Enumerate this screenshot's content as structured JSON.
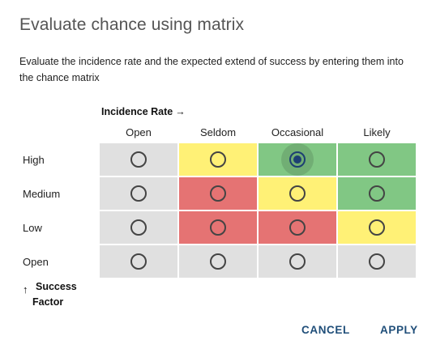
{
  "dialog": {
    "title": "Evaluate chance using matrix",
    "description": "Evaluate the incidence rate and the expected extend of success by entering them into the chance matrix"
  },
  "matrix": {
    "x_axis_label": "Incidence Rate",
    "x_axis_arrow": "→",
    "y_axis_label_line1": "Success",
    "y_axis_label_line2": "Factor",
    "y_axis_arrow": "↑",
    "columns": [
      "Open",
      "Seldom",
      "Occasional",
      "Likely"
    ],
    "rows": [
      {
        "label": "High",
        "cells": [
          "grey",
          "yellow",
          "green",
          "green"
        ]
      },
      {
        "label": "Medium",
        "cells": [
          "grey",
          "red",
          "yellow",
          "green"
        ]
      },
      {
        "label": "Low",
        "cells": [
          "grey",
          "red",
          "red",
          "yellow"
        ]
      },
      {
        "label": "Open",
        "cells": [
          "grey",
          "grey",
          "grey",
          "grey"
        ]
      }
    ],
    "selected": {
      "row": 0,
      "col": 2
    },
    "colors": {
      "grey": "#e0e0e0",
      "yellow": "#fff176",
      "green": "#81c784",
      "red": "#e57373",
      "selected_radio": "#1d3f73"
    }
  },
  "actions": {
    "cancel_label": "CANCEL",
    "apply_label": "APPLY"
  }
}
